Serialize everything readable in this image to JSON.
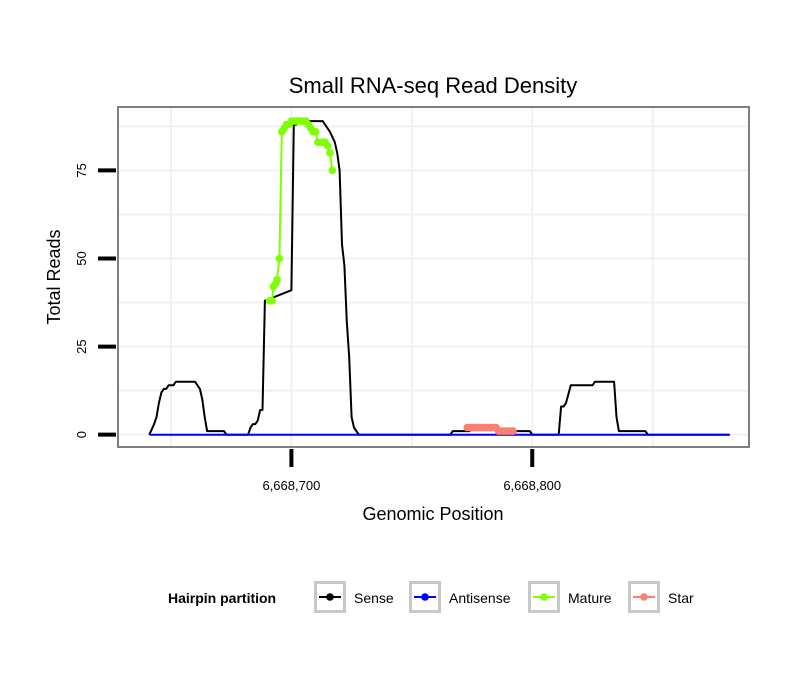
{
  "chart_data": {
    "type": "line",
    "title": "Small RNA-seq Read Density",
    "xlabel": "Genomic Position",
    "ylabel": "Total Reads",
    "xlim": [
      6668628,
      6668890
    ],
    "ylim": [
      -3.5,
      93
    ],
    "x_ticks": [
      6668700,
      6668800
    ],
    "x_tick_labels": [
      "6,668,700",
      "6,668,800"
    ],
    "y_ticks": [
      0,
      25,
      50,
      75
    ],
    "y_tick_labels": [
      "0",
      "25",
      "50",
      "75"
    ],
    "grid": true,
    "legend": {
      "title": "Hairpin partition",
      "position": "bottom",
      "entries": [
        {
          "name": "Sense",
          "color": "#000000"
        },
        {
          "name": "Antisense",
          "color": "#0000FF"
        },
        {
          "name": "Mature",
          "color": "#7FFF00"
        },
        {
          "name": "Star",
          "color": "#FA8072"
        }
      ]
    },
    "series": [
      {
        "name": "Sense",
        "color": "#000000",
        "markers": false,
        "points": [
          [
            6668641,
            0
          ],
          [
            6668643,
            3
          ],
          [
            6668644,
            5
          ],
          [
            6668645,
            9
          ],
          [
            6668646,
            12
          ],
          [
            6668647,
            13
          ],
          [
            6668648,
            13
          ],
          [
            6668649,
            14
          ],
          [
            6668650,
            14
          ],
          [
            6668651,
            14
          ],
          [
            6668652,
            15
          ],
          [
            6668653,
            15
          ],
          [
            6668654,
            15
          ],
          [
            6668655,
            15
          ],
          [
            6668656,
            15
          ],
          [
            6668657,
            15
          ],
          [
            6668658,
            15
          ],
          [
            6668659,
            15
          ],
          [
            6668660,
            15
          ],
          [
            6668661,
            14
          ],
          [
            6668662,
            13
          ],
          [
            6668663,
            10
          ],
          [
            6668664,
            5
          ],
          [
            6668665,
            1
          ],
          [
            6668666,
            1
          ],
          [
            6668672,
            1
          ],
          [
            6668673,
            0
          ],
          [
            6668682,
            0
          ],
          [
            6668683,
            2
          ],
          [
            6668684,
            3
          ],
          [
            6668685,
            3
          ],
          [
            6668686,
            4
          ],
          [
            6668687,
            7
          ],
          [
            6668688,
            7
          ],
          [
            6668689,
            38
          ],
          [
            6668700,
            41
          ],
          [
            6668701,
            88
          ],
          [
            6668702,
            88
          ],
          [
            6668703,
            89
          ],
          [
            6668713,
            89
          ],
          [
            6668716,
            86
          ],
          [
            6668718,
            83
          ],
          [
            6668719,
            80
          ],
          [
            6668720,
            75
          ],
          [
            6668721,
            54
          ],
          [
            6668722,
            48
          ],
          [
            6668723,
            32
          ],
          [
            6668724,
            22
          ],
          [
            6668725,
            5
          ],
          [
            6668726,
            2
          ],
          [
            6668728,
            0
          ],
          [
            6668766,
            0
          ],
          [
            6668767,
            1
          ],
          [
            6668774,
            1
          ],
          [
            6668775,
            2
          ],
          [
            6668785,
            2
          ],
          [
            6668786,
            1
          ],
          [
            6668799,
            1
          ],
          [
            6668800,
            0
          ],
          [
            6668811,
            0
          ],
          [
            6668812,
            8
          ],
          [
            6668813,
            8
          ],
          [
            6668814,
            9
          ],
          [
            6668816,
            14
          ],
          [
            6668825,
            14
          ],
          [
            6668826,
            15
          ],
          [
            6668834,
            15
          ],
          [
            6668835,
            5
          ],
          [
            6668836,
            1
          ],
          [
            6668847,
            1
          ],
          [
            6668848,
            0
          ],
          [
            6668882,
            0
          ]
        ]
      },
      {
        "name": "Antisense",
        "color": "#0000FF",
        "markers": false,
        "points": [
          [
            6668641,
            0
          ],
          [
            6668882,
            0
          ]
        ]
      },
      {
        "name": "Mature",
        "color": "#7FFF00",
        "markers": true,
        "points": [
          [
            6668691,
            38
          ],
          [
            6668692,
            38
          ],
          [
            6668692.5,
            42
          ],
          [
            6668693.5,
            43
          ],
          [
            6668694,
            44
          ],
          [
            6668695,
            50
          ],
          [
            6668696,
            86
          ],
          [
            6668697,
            87
          ],
          [
            6668698,
            88
          ],
          [
            6668699,
            88
          ],
          [
            6668700,
            89
          ],
          [
            6668701,
            89
          ],
          [
            6668702,
            89
          ],
          [
            6668703,
            89
          ],
          [
            6668704,
            89
          ],
          [
            6668705,
            89
          ],
          [
            6668706,
            89
          ],
          [
            6668707,
            88
          ],
          [
            6668708,
            87
          ],
          [
            6668709,
            86
          ],
          [
            6668710,
            86
          ],
          [
            6668711,
            83
          ],
          [
            6668712,
            83
          ],
          [
            6668713,
            83
          ],
          [
            6668714,
            83
          ],
          [
            6668715,
            82
          ],
          [
            6668716,
            80
          ],
          [
            6668717,
            75
          ]
        ]
      },
      {
        "name": "Star",
        "color": "#FA8072",
        "markers": true,
        "points": [
          [
            6668773,
            2
          ],
          [
            6668774,
            2
          ],
          [
            6668775,
            2
          ],
          [
            6668776,
            2
          ],
          [
            6668777,
            2
          ],
          [
            6668778,
            2
          ],
          [
            6668779,
            2
          ],
          [
            6668780,
            2
          ],
          [
            6668781,
            2
          ],
          [
            6668782,
            2
          ],
          [
            6668783,
            2
          ],
          [
            6668784,
            2
          ],
          [
            6668785,
            2
          ],
          [
            6668786,
            1
          ],
          [
            6668787,
            1
          ],
          [
            6668788,
            1
          ],
          [
            6668789,
            1
          ],
          [
            6668790,
            1
          ],
          [
            6668791,
            1
          ],
          [
            6668792,
            1
          ]
        ]
      }
    ]
  }
}
